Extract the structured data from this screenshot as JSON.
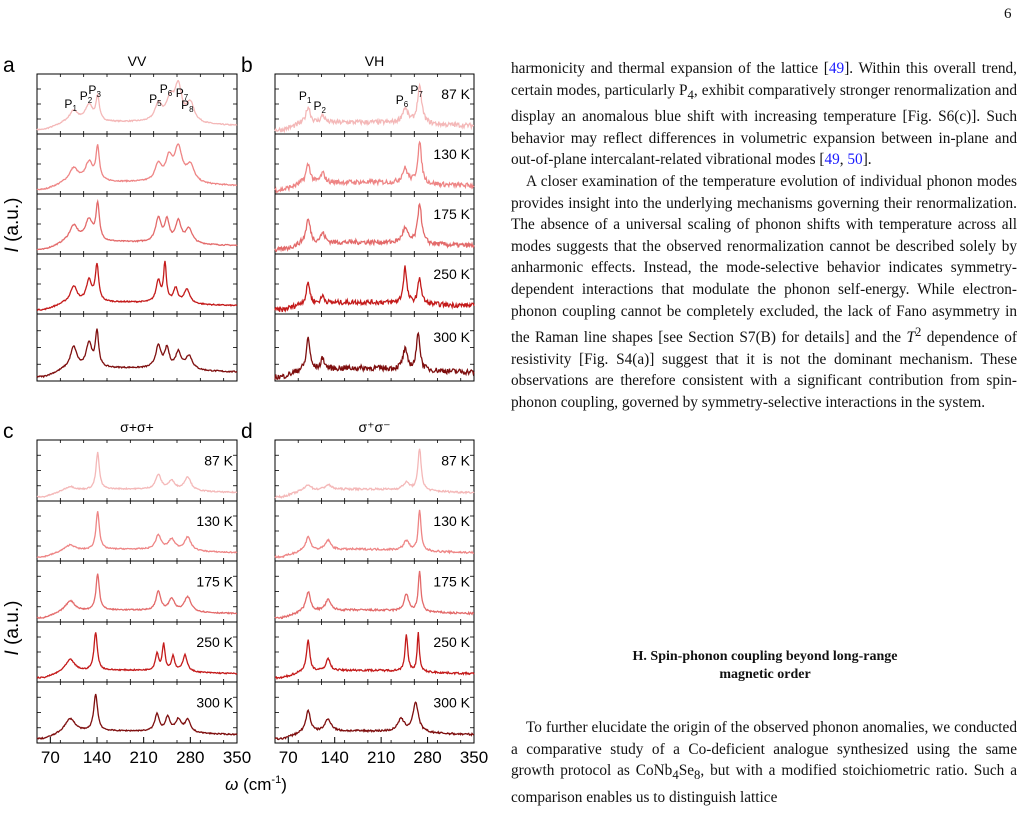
{
  "page_number": "6",
  "figure": {
    "panels": [
      {
        "letter": "a",
        "title": "VV",
        "col": 0,
        "row": 0
      },
      {
        "letter": "b",
        "title": "VH",
        "col": 1,
        "row": 0
      },
      {
        "letter": "c",
        "title": "σ+σ+",
        "col": 0,
        "row": 1
      },
      {
        "letter": "d",
        "title": "σ⁺σ⁻",
        "col": 1,
        "row": 1
      }
    ],
    "temperatures": [
      "87 K",
      "130 K",
      "175 K",
      "250 K",
      "300 K"
    ],
    "trace_colors": [
      "#f4b8b8",
      "#ee8585",
      "#e36a6a",
      "#c41a1a",
      "#7e0e0e"
    ],
    "ylabel": "I (a.u.)",
    "xlabel": "ω (cm⁻¹)",
    "xticks": [
      70,
      140,
      210,
      280,
      350
    ],
    "xrange": [
      50,
      350
    ],
    "peak_labels_a": [
      {
        "text": "P1",
        "sub": "1",
        "x": 105
      },
      {
        "text": "P2",
        "sub": "2",
        "x": 128
      },
      {
        "text": "P3",
        "sub": "3",
        "x": 141
      },
      {
        "text": "P5",
        "sub": "5",
        "x": 232
      },
      {
        "text": "P6",
        "sub": "6",
        "x": 248
      },
      {
        "text": "P7",
        "sub": "7",
        "x": 272
      },
      {
        "text": "P8",
        "sub": "8",
        "x": 280
      }
    ],
    "peak_labels_b": [
      {
        "text": "P1",
        "sub": "1",
        "x": 100
      },
      {
        "text": "P2",
        "sub": "2",
        "x": 122
      },
      {
        "text": "P6",
        "sub": "6",
        "x": 246
      },
      {
        "text": "P7",
        "sub": "7",
        "x": 268
      }
    ]
  },
  "chart_data": {
    "type": "line",
    "title": "",
    "xlabel": "ω (cm⁻¹)",
    "ylabel": "I (a.u.)",
    "xlim": [
      50,
      350
    ],
    "panels": {
      "a": {
        "P1": 105,
        "P2": 128,
        "P3": 141,
        "P5": 232,
        "P6": 248,
        "P7": 272,
        "P8": 280
      },
      "b": {
        "P1": 100,
        "P2": 122,
        "P6": 246,
        "P7": 268
      },
      "c": {
        "peaks": [
          100,
          141,
          232,
          252,
          276
        ]
      },
      "d": {
        "peaks": [
          100,
          130,
          248,
          268
        ]
      }
    }
  },
  "text": {
    "para1": [
      "harmonicity and thermal expansion of the lattice [",
      "49",
      "]. Within this overall trend, certain modes, particularly P",
      "4",
      ", exhibit comparatively stronger renormalization and display an anomalous blue shift with increasing temperature [Fig. S6(c)]. Such behavior may reflect differences in volumetric expansion between in-plane and out-of-plane intercalant-related vibrational modes [",
      "49",
      ", ",
      "50",
      "]."
    ],
    "para2_a": "A closer examination of the temperature evolution of individual phonon modes provides insight into the underlying mechanisms governing their renormalization. The absence of a universal scaling of phonon shifts with temperature across all modes suggests that the observed renormalization cannot be described solely by anharmonic effects. Instead, the mode-selective behavior indicates symmetry-dependent interactions that modulate the phonon self-energy. While electron-phonon coupling cannot be completely excluded, the lack of Fano asymmetry in the Raman line shapes [see Section S7(B) for details] and the ",
    "para2_t": "T",
    "para2_sup": "2",
    "para2_b": " dependence of resistivity [Fig. S4(a)] suggest that it is not the dominant mechanism. These observations are therefore consistent with a significant contribution from spin-phonon coupling, governed by symmetry-selective interactions in the system.",
    "section_heading_1": "H.   Spin-phonon coupling beyond long-range",
    "section_heading_2": "magnetic order",
    "para3_a": "To further elucidate the origin of the observed phonon anomalies, we conducted a comparative study of a Co-deficient analogue synthesized using the same growth protocol as CoNb",
    "para3_s1": "4",
    "para3_b": "Se",
    "para3_s2": "8",
    "para3_c": ", but with a modified stoichiometric ratio. Such a comparison enables us to distinguish lattice"
  }
}
